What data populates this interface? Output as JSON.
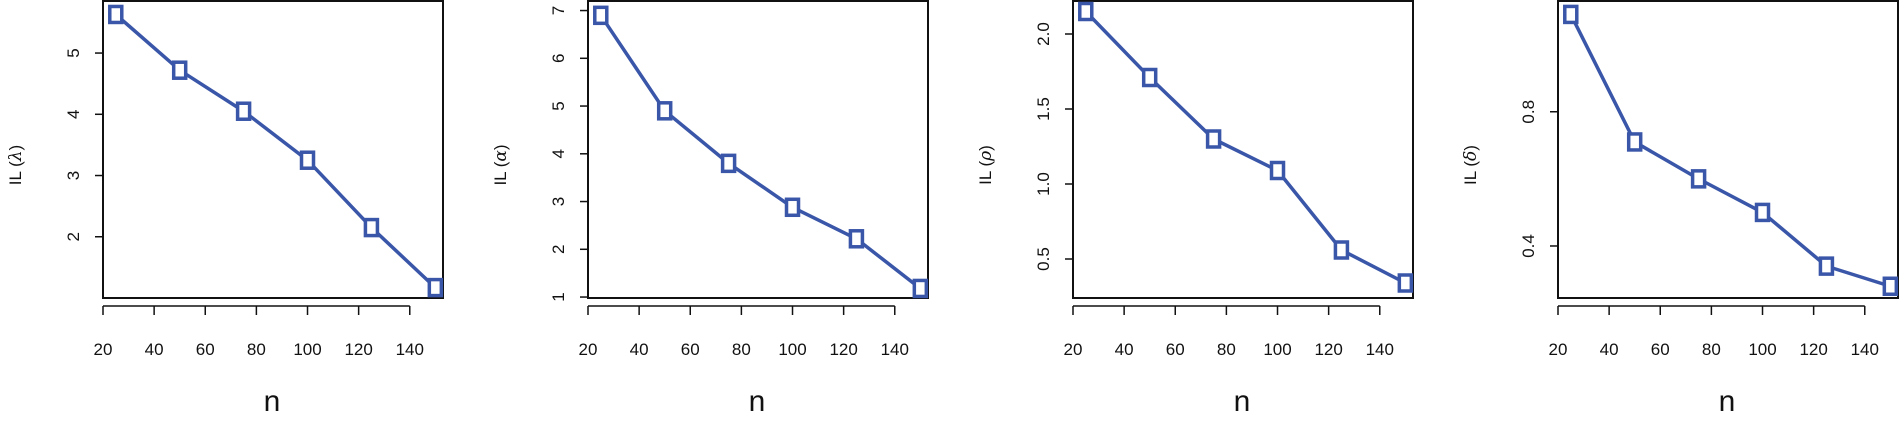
{
  "colors": {
    "series": "#3a56a8",
    "axis": "#111111"
  },
  "chart_data": [
    {
      "type": "line",
      "xlabel": "n",
      "ylabel": {
        "prefix": "IL (",
        "symbol": "λ",
        "suffix": ")"
      },
      "x": [
        25,
        50,
        75,
        100,
        125,
        150
      ],
      "values": [
        5.63,
        4.72,
        4.05,
        3.25,
        2.15,
        1.17
      ],
      "xticks": [
        20,
        40,
        60,
        80,
        100,
        120,
        140
      ],
      "yticks": [
        2,
        3,
        4,
        5
      ],
      "xlim": [
        20,
        153
      ],
      "ylim": [
        1.0,
        5.85
      ],
      "marker": "open-square"
    },
    {
      "type": "line",
      "xlabel": "n",
      "ylabel": {
        "prefix": "IL (",
        "symbol": "α",
        "suffix": ")"
      },
      "x": [
        25,
        50,
        75,
        100,
        125,
        150
      ],
      "values": [
        6.9,
        4.9,
        3.8,
        2.88,
        2.22,
        1.18
      ],
      "xticks": [
        20,
        40,
        60,
        80,
        100,
        120,
        140
      ],
      "yticks": [
        1,
        2,
        3,
        4,
        5,
        6,
        7
      ],
      "xlim": [
        20,
        153
      ],
      "ylim": [
        0.98,
        7.2
      ],
      "marker": "open-square"
    },
    {
      "type": "line",
      "xlabel": "n",
      "ylabel": {
        "prefix": "IL (",
        "symbol": "ρ",
        "suffix": ")"
      },
      "x": [
        25,
        50,
        75,
        100,
        125,
        150
      ],
      "values": [
        2.15,
        1.71,
        1.3,
        1.09,
        0.56,
        0.34
      ],
      "xticks": [
        20,
        40,
        60,
        80,
        100,
        120,
        140
      ],
      "yticks": [
        "0.5",
        "1.0",
        "1.5",
        "2.0"
      ],
      "xlim": [
        20,
        153
      ],
      "ylim": [
        0.24,
        2.22
      ],
      "marker": "open-square"
    },
    {
      "type": "line",
      "xlabel": "n",
      "ylabel": {
        "prefix": "IL (",
        "symbol": "δ",
        "suffix": ")"
      },
      "x": [
        25,
        50,
        75,
        100,
        125,
        150
      ],
      "values": [
        1.09,
        0.71,
        0.6,
        0.5,
        0.34,
        0.28
      ],
      "xticks": [
        20,
        40,
        60,
        80,
        100,
        120,
        140
      ],
      "yticks": [
        "0.4",
        "0.8"
      ],
      "xlim": [
        20,
        153
      ],
      "ylim": [
        0.245,
        1.13
      ],
      "marker": "open-square"
    }
  ]
}
